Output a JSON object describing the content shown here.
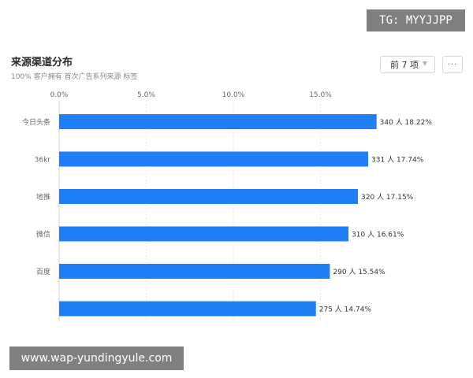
{
  "header": {
    "title": "来源渠道分布",
    "subtitle": "100% 客户拥有 首次广告系列来源 标签"
  },
  "controls": {
    "select_label": "前 7 项",
    "select_icon": "chevron-down-icon",
    "more_label": "···"
  },
  "watermarks": {
    "top": "TG: MYYJJPP",
    "bottom": "www.wap-yundingyule.com"
  },
  "colors": {
    "bar": "#1f7ff7",
    "axis_text": "#666666",
    "grid": "#e6e6e6",
    "label": "#333333"
  },
  "chart_data": {
    "type": "bar",
    "orientation": "horizontal",
    "categories": [
      "今日头条",
      "36kr",
      "地推",
      "微信",
      "百度",
      ""
    ],
    "counts": [
      340,
      331,
      320,
      310,
      290,
      275
    ],
    "values": [
      18.22,
      17.74,
      17.15,
      16.61,
      15.54,
      14.74
    ],
    "data_labels": [
      "340 人 18.22%",
      "331 人 17.74%",
      "320 人 17.15%",
      "310 人 16.61%",
      "290 人 15.54%",
      "275 人 14.74%"
    ],
    "xticks": [
      "0.0%",
      "5.0%",
      "10.0%",
      "15.0%"
    ],
    "xtick_values": [
      0,
      5,
      10,
      15
    ],
    "xlim": [
      0,
      18.9
    ],
    "grid": true,
    "x_axis_position": "top"
  }
}
